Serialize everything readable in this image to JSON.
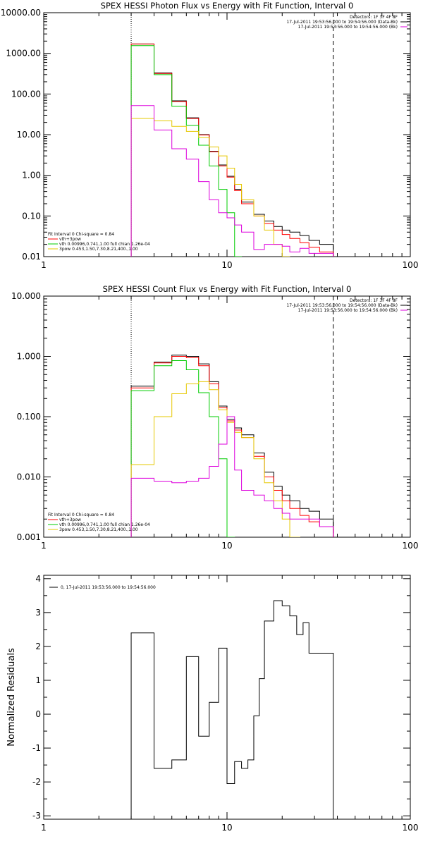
{
  "chart_data": [
    {
      "type": "line",
      "title": "SPEX HESSI Photon Flux vs Energy with Fit Function, Interval 0",
      "xscale": "log",
      "yscale": "log",
      "xlim": [
        1,
        100
      ],
      "ylim": [
        0.01,
        10000
      ],
      "xticks": [
        "1",
        "10",
        "100"
      ],
      "yticks": [
        "10000.00",
        "1000.00",
        "100.00",
        "10.00",
        "1.00",
        "0.10",
        "0.01"
      ],
      "header_lines": [
        "Detectors: 1F 3F 4F 8F",
        "17-Jul-2011 19:53:56.000 to 19:54:56.000 (Data-Bk)",
        "17-Jul-2011 19:53:56.000 to 19:54:56.000 (Bk)"
      ],
      "legend_lines": [
        "Fit Interval  0    Chi-square = 0.84",
        "vth+3pow",
        "vth 0.00996,0.741,1.00   full chian 1.26e-04",
        "3pow 0.453,1.50,7.30,8.21,400.,1.00"
      ],
      "vlines": [
        3.0,
        38.0
      ],
      "bin_edges": [
        3.0,
        4.0,
        5.0,
        6.0,
        7.0,
        8.0,
        9.0,
        10.0,
        11.0,
        12.0,
        14.0,
        16.0,
        18.0,
        20.0,
        22.0,
        25.0,
        28.0,
        32.0,
        38.0
      ],
      "series": [
        {
          "color": "#000000",
          "values": [
            1700,
            330,
            68,
            26,
            10,
            3.9,
            1.8,
            0.95,
            0.45,
            0.22,
            0.11,
            0.075,
            0.055,
            0.045,
            0.04,
            0.033,
            0.025,
            0.02
          ]
        },
        {
          "color": "#ff0000",
          "values": [
            1700,
            320,
            65,
            25,
            9.8,
            3.8,
            1.7,
            0.9,
            0.42,
            0.2,
            0.1,
            0.065,
            0.045,
            0.035,
            0.028,
            0.022,
            0.017,
            0.013
          ]
        },
        {
          "color": "#00cc00",
          "values": [
            1550,
            300,
            50,
            17,
            5.5,
            1.7,
            0.45,
            0.12,
            0.01
          ]
        },
        {
          "color": "#e6c800",
          "values": [
            25,
            22,
            16,
            12,
            8.5,
            5.0,
            3.0,
            1.5,
            0.6,
            0.25,
            0.1,
            0.045,
            0.02,
            0.01
          ]
        },
        {
          "color": "#dd00dd",
          "values": [
            52,
            13,
            4.5,
            2.5,
            0.7,
            0.25,
            0.12,
            0.09,
            0.06,
            0.04,
            0.015,
            0.02,
            0.02,
            0.018,
            0.013,
            0.016,
            0.012,
            0.012
          ]
        }
      ]
    },
    {
      "type": "line",
      "title": "SPEX HESSI Count Flux vs Energy with Fit Function, Interval 0",
      "xscale": "log",
      "yscale": "log",
      "xlim": [
        1,
        100
      ],
      "ylim": [
        0.001,
        10
      ],
      "xticks": [
        "1",
        "10",
        "100"
      ],
      "yticks": [
        "10.000",
        "1.000",
        "0.100",
        "0.010",
        "0.001"
      ],
      "header_lines": [
        "Detectors: 1F 3F 4F 8F",
        "17-Jul-2011 19:53:56.000 to 19:54:56.000 (Data-Bk)",
        "17-Jul-2011 19:53:56.000 to 19:54:56.000 (Bk)"
      ],
      "legend_lines": [
        "Fit Interval  0    Chi-square = 0.84",
        "vth+3pow",
        "vth 0.00996,0.741,1.00   full chian 1.26e-04",
        "3pow 0.453,1.50,7.30,8.21,400.,1.00"
      ],
      "vlines": [
        3.0,
        38.0
      ],
      "bin_edges": [
        3.0,
        4.0,
        5.0,
        6.0,
        7.0,
        8.0,
        9.0,
        10.0,
        11.0,
        12.0,
        14.0,
        16.0,
        18.0,
        20.0,
        22.0,
        25.0,
        28.0,
        32.0,
        38.0
      ],
      "series": [
        {
          "color": "#000000",
          "values": [
            0.32,
            0.8,
            1.05,
            1.0,
            0.75,
            0.38,
            0.15,
            0.09,
            0.065,
            0.05,
            0.025,
            0.012,
            0.007,
            0.005,
            0.004,
            0.003,
            0.0027,
            0.002
          ]
        },
        {
          "color": "#ff0000",
          "values": [
            0.3,
            0.78,
            1.0,
            0.95,
            0.7,
            0.35,
            0.14,
            0.085,
            0.06,
            0.045,
            0.022,
            0.01,
            0.006,
            0.004,
            0.003,
            0.0023,
            0.0018,
            0.0015
          ]
        },
        {
          "color": "#00cc00",
          "values": [
            0.27,
            0.7,
            0.85,
            0.6,
            0.25,
            0.1,
            0.02,
            0.001
          ]
        },
        {
          "color": "#e6c800",
          "values": [
            0.016,
            0.1,
            0.24,
            0.35,
            0.38,
            0.28,
            0.13,
            0.08,
            0.055,
            0.045,
            0.02,
            0.008,
            0.004,
            0.002,
            0.001
          ]
        },
        {
          "color": "#dd00dd",
          "values": [
            0.0095,
            0.0085,
            0.008,
            0.0085,
            0.0095,
            0.015,
            0.035,
            0.1,
            0.013,
            0.006,
            0.005,
            0.004,
            0.003,
            0.0025,
            0.002,
            0.002,
            0.002,
            0.0015
          ]
        }
      ]
    },
    {
      "type": "line",
      "title": "",
      "xscale": "log",
      "yscale": "linear",
      "xlim": [
        1,
        100
      ],
      "ylim": [
        -3.1,
        4.1
      ],
      "xticks": [
        "1",
        "10",
        "100"
      ],
      "yticks": [
        "4",
        "3",
        "2",
        "1",
        "0",
        "-1",
        "-2",
        "-3"
      ],
      "ylabel": "Normalized Residuals",
      "legend_lines": [
        "0, 17-Jul-2011 19:53:56.000 to 19:54:56.000"
      ],
      "bin_edges": [
        3.0,
        4.0,
        5.0,
        6.0,
        7.0,
        8.0,
        9.0,
        10.0,
        11.0,
        12.0,
        13.0,
        14.0,
        15.0,
        16.0,
        18.0,
        20.0,
        22.0,
        24.0,
        26.0,
        28.0,
        30.0,
        33.0,
        38.0
      ],
      "series": [
        {
          "color": "#000000",
          "values": [
            2.4,
            -1.6,
            -1.35,
            1.7,
            -0.65,
            0.35,
            1.95,
            -2.05,
            -1.4,
            -1.6,
            -1.35,
            -0.05,
            1.05,
            2.75,
            3.35,
            3.2,
            2.9,
            2.35,
            2.7,
            1.8,
            1.8,
            1.8
          ]
        }
      ]
    }
  ]
}
